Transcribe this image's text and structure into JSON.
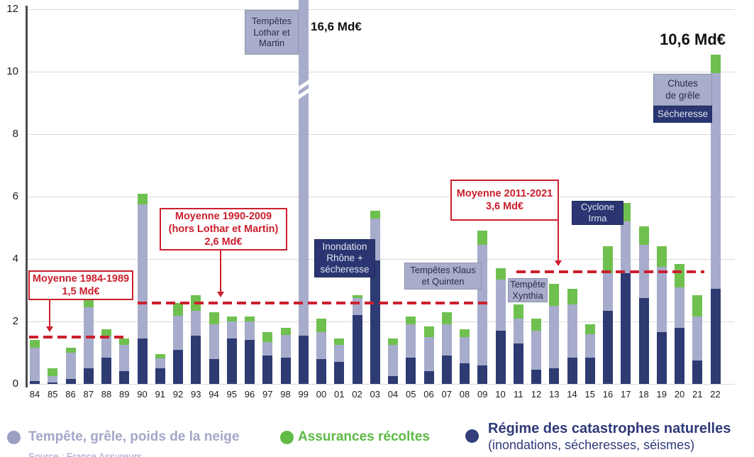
{
  "chart_data": {
    "type": "bar",
    "subtype": "stacked",
    "title": "",
    "unit": "Md€",
    "ylim": [
      0,
      12
    ],
    "yticks": [
      0,
      2,
      4,
      6,
      8,
      10,
      12
    ],
    "grid": "horizontal",
    "categories": [
      "84",
      "85",
      "86",
      "87",
      "88",
      "89",
      "90",
      "91",
      "92",
      "93",
      "94",
      "95",
      "96",
      "97",
      "98",
      "99",
      "00",
      "01",
      "02",
      "03",
      "04",
      "05",
      "06",
      "07",
      "08",
      "09",
      "10",
      "11",
      "12",
      "13",
      "14",
      "15",
      "16",
      "17",
      "18",
      "19",
      "20",
      "21",
      "22"
    ],
    "series": [
      {
        "name": "Régime des catastrophes naturelles (inondations, sécheresses, séismes)",
        "color": "#2e3a72",
        "values": [
          0.1,
          0.05,
          0.15,
          0.5,
          0.85,
          0.4,
          1.45,
          0.5,
          1.1,
          1.55,
          0.8,
          1.45,
          1.4,
          0.9,
          0.85,
          1.55,
          0.8,
          0.7,
          2.2,
          3.95,
          0.25,
          0.85,
          0.4,
          0.9,
          0.65,
          0.6,
          1.7,
          1.3,
          0.45,
          0.5,
          0.85,
          0.85,
          2.35,
          3.55,
          2.75,
          1.65,
          1.8,
          0.75,
          3.05
        ]
      },
      {
        "name": "Tempête, grêle, poids de la neige",
        "color": "#a7accc",
        "values": [
          1.05,
          0.2,
          0.85,
          1.95,
          0.67,
          0.85,
          4.3,
          0.32,
          1.08,
          0.8,
          1.1,
          0.55,
          0.6,
          0.45,
          0.72,
          15.05,
          0.85,
          0.55,
          0.55,
          1.35,
          1.0,
          1.05,
          1.1,
          1.0,
          0.85,
          3.85,
          1.65,
          0.8,
          1.25,
          2.0,
          1.7,
          0.75,
          1.2,
          1.65,
          1.7,
          2.1,
          1.3,
          1.4,
          6.9
        ]
      },
      {
        "name": "Assurances récoltes",
        "color": "#6fc04f",
        "values": [
          0.25,
          0.25,
          0.15,
          0.25,
          0.23,
          0.2,
          0.35,
          0.13,
          0.4,
          0.5,
          0.4,
          0.15,
          0.15,
          0.3,
          0.23,
          0.0,
          0.45,
          0.2,
          0.1,
          0.25,
          0.2,
          0.25,
          0.35,
          0.4,
          0.25,
          0.45,
          0.35,
          0.45,
          0.4,
          0.7,
          0.5,
          0.3,
          0.85,
          0.6,
          0.6,
          0.65,
          0.75,
          0.7,
          0.6
        ]
      }
    ],
    "clipped_bar": {
      "category": "99",
      "note": "bar truncated with axis break marks",
      "total_label": "16,6 Md€"
    },
    "annotations": {
      "lothar": {
        "text": "Tempêtes\nLothar et\nMartin"
      },
      "peak_1999_label": "16,6 Md€",
      "peak_2022_label": "10,6 Md€",
      "inondation": {
        "text": "Inondation\nRhône +\nsécheresse"
      },
      "klaus": {
        "text": "Tempêtes Klaus\net Quinten"
      },
      "xynthia": {
        "text": "Tempête\nXynthia"
      },
      "irma": {
        "text": "Cyclone\nIrma"
      },
      "grele": {
        "text": "Chutes\nde grêle"
      },
      "secheresse": {
        "text": "Sécheresse"
      },
      "mean1": {
        "text": "Moyenne 1984-1989\n1,5 Md€",
        "value": 1.5,
        "span": "84-89"
      },
      "mean2": {
        "text": "Moyenne 1990-2009\n(hors Lothar et Martin)\n2,6 Md€",
        "value": 2.6,
        "span": "90-09"
      },
      "mean3": {
        "text": "Moyenne 2011-2021\n3,6 Md€",
        "value": 3.6,
        "span": "11-21"
      }
    },
    "legend_position": "bottom"
  },
  "legend": {
    "items": [
      {
        "label": "Tempête, grêle, poids de la neige",
        "color": "#a3a7c8",
        "dot_color": "#9a9ec3"
      },
      {
        "label": "Assurances récoltes",
        "color": "#5cb944",
        "dot_color": "#62bb45"
      },
      {
        "label": "Régime des catastrophes naturelles",
        "sublabel": "(inondations, sécheresses, séismes)",
        "color": "#2e3a78",
        "dot_color": "#333d7a"
      }
    ]
  },
  "source_note": "Source : France Assureurs",
  "colors": {
    "accent_red": "#cb1f2d",
    "gridline": "#d9d9d9",
    "axis": "#4d4d4d"
  }
}
